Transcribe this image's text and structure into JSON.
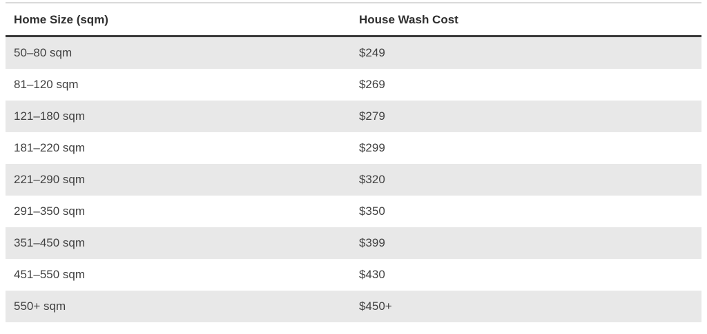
{
  "colors": {
    "page_bg": "#ffffff",
    "top_border": "#d9d9d9",
    "header_border": "#3a3a3a",
    "header_text": "#2f2f2f",
    "body_text": "#414141",
    "stripe_bg": "#e8e8e8",
    "row_bg": "#ffffff"
  },
  "table": {
    "columns": [
      {
        "label": "Home Size (sqm)"
      },
      {
        "label": "House Wash Cost"
      }
    ],
    "rows": [
      {
        "size": "50–80 sqm",
        "cost": "$249"
      },
      {
        "size": "81–120 sqm",
        "cost": "$269"
      },
      {
        "size": "121–180 sqm",
        "cost": "$279"
      },
      {
        "size": "181–220 sqm",
        "cost": "$299"
      },
      {
        "size": "221–290 sqm",
        "cost": "$320"
      },
      {
        "size": "291–350 sqm",
        "cost": "$350"
      },
      {
        "size": "351–450 sqm",
        "cost": "$399"
      },
      {
        "size": "451–550 sqm",
        "cost": "$430"
      },
      {
        "size": "550+ sqm",
        "cost": "$450+"
      }
    ]
  }
}
